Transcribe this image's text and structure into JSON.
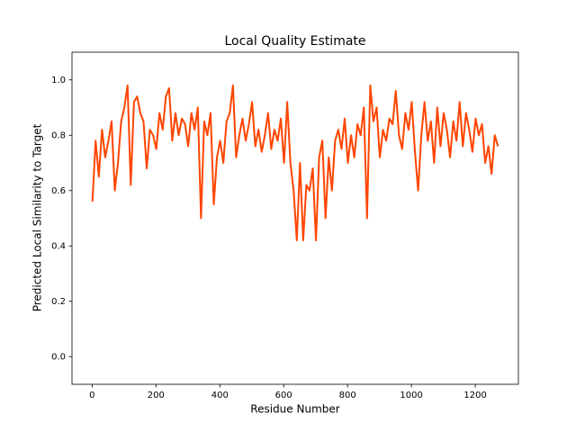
{
  "chart_data": {
    "type": "line",
    "title": "Local Quality Estimate",
    "x_label": "Residue Number",
    "y_label": "Predicted Local Similarity to Target",
    "color": "#ff4500",
    "x": [
      1,
      11,
      21,
      31,
      41,
      51,
      61,
      71,
      81,
      91,
      101,
      111,
      121,
      131,
      141,
      151,
      161,
      171,
      181,
      191,
      201,
      211,
      221,
      231,
      241,
      251,
      261,
      271,
      281,
      291,
      301,
      311,
      321,
      331,
      341,
      351,
      361,
      371,
      381,
      391,
      401,
      411,
      421,
      431,
      441,
      451,
      461,
      471,
      481,
      491,
      501,
      511,
      521,
      531,
      541,
      551,
      561,
      571,
      581,
      591,
      601,
      611,
      621,
      631,
      641,
      651,
      661,
      671,
      681,
      691,
      701,
      711,
      721,
      731,
      741,
      751,
      761,
      771,
      781,
      791,
      801,
      811,
      821,
      831,
      841,
      851,
      861,
      871,
      881,
      891,
      901,
      911,
      921,
      931,
      941,
      951,
      961,
      971,
      981,
      991,
      1001,
      1011,
      1021,
      1031,
      1041,
      1051,
      1061,
      1071,
      1081,
      1091,
      1101,
      1111,
      1121,
      1131,
      1141,
      1151,
      1161,
      1171,
      1181,
      1191,
      1201,
      1211,
      1221,
      1231,
      1241,
      1251,
      1261,
      1271
    ],
    "values": [
      0.56,
      0.78,
      0.65,
      0.82,
      0.72,
      0.78,
      0.85,
      0.6,
      0.7,
      0.85,
      0.9,
      0.98,
      0.62,
      0.92,
      0.94,
      0.88,
      0.85,
      0.68,
      0.82,
      0.8,
      0.75,
      0.88,
      0.82,
      0.94,
      0.97,
      0.78,
      0.88,
      0.8,
      0.86,
      0.84,
      0.76,
      0.88,
      0.82,
      0.9,
      0.5,
      0.85,
      0.8,
      0.88,
      0.55,
      0.72,
      0.78,
      0.7,
      0.85,
      0.88,
      0.98,
      0.72,
      0.8,
      0.86,
      0.78,
      0.84,
      0.92,
      0.76,
      0.82,
      0.74,
      0.8,
      0.88,
      0.75,
      0.82,
      0.78,
      0.86,
      0.7,
      0.92,
      0.7,
      0.6,
      0.42,
      0.7,
      0.42,
      0.62,
      0.6,
      0.68,
      0.42,
      0.72,
      0.78,
      0.5,
      0.72,
      0.6,
      0.78,
      0.82,
      0.75,
      0.86,
      0.7,
      0.8,
      0.72,
      0.84,
      0.8,
      0.9,
      0.5,
      0.98,
      0.85,
      0.9,
      0.72,
      0.82,
      0.78,
      0.86,
      0.84,
      0.96,
      0.8,
      0.75,
      0.88,
      0.82,
      0.92,
      0.74,
      0.6,
      0.8,
      0.92,
      0.78,
      0.85,
      0.7,
      0.9,
      0.76,
      0.88,
      0.82,
      0.72,
      0.85,
      0.78,
      0.92,
      0.76,
      0.88,
      0.82,
      0.74,
      0.86,
      0.8,
      0.84,
      0.7,
      0.76,
      0.66,
      0.8,
      0.76
    ],
    "xlim": [
      -63,
      1335
    ],
    "ylim": [
      -0.1,
      1.1
    ],
    "xticks": [
      0,
      200,
      400,
      600,
      800,
      1000,
      1200
    ],
    "yticks": [
      {
        "value": 0,
        "label": "0.0"
      },
      0.2,
      0.4,
      0.6,
      0.8,
      {
        "value": 1,
        "label": "1.0"
      }
    ]
  }
}
